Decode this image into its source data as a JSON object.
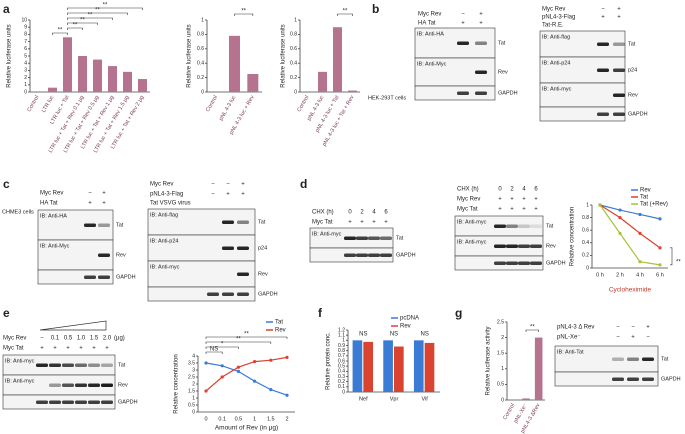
{
  "panel_labels": [
    "a",
    "b",
    "c",
    "d",
    "e",
    "f",
    "g"
  ],
  "chart_data": [
    {
      "type": "bar",
      "ylabel": "Relative luciferase units",
      "categories": [
        "Control",
        "LTR luc",
        "LTR luc + Tat",
        "LTR luc + Tat + Rev 0.1 μg",
        "LTR luc + Tat + Rev 0.5 μg",
        "LTR luc + Tat + Rev 1 μg",
        "LTR luc + Tat + Rev 1.5 μg",
        "LTR luc + Tat + Rev 2 μg"
      ],
      "values": [
        0,
        0.6,
        7.6,
        5.0,
        4.5,
        3.6,
        2.8,
        1.8
      ],
      "color": "#b5738f",
      "ylim": [
        0,
        10
      ],
      "yticks": [
        0,
        1,
        2,
        3,
        4,
        5,
        6,
        7,
        8,
        9,
        10
      ],
      "annotations": [
        "**",
        "**",
        "**",
        "**",
        "**",
        "**"
      ]
    },
    {
      "type": "bar",
      "ylabel": "Relative luciferase units",
      "categories": [
        "Control",
        "pNL 4-3 luc",
        "pNL 4-3 luc + Rev"
      ],
      "values": [
        0,
        0.78,
        0.25
      ],
      "color": "#b5738f",
      "ylim": [
        0,
        1
      ],
      "yticks": [
        0,
        0.2,
        0.4,
        0.6,
        0.8,
        1
      ],
      "annotations": [
        "**"
      ]
    },
    {
      "type": "bar",
      "ylabel": "Relative luciferase units",
      "categories": [
        "Control",
        "pNL 4-3 luc",
        "pNL 4-3 luc + Tat",
        "pNL 4-3 luc + Tat + Rev"
      ],
      "values": [
        0,
        0.28,
        0.9,
        0.02
      ],
      "color": "#b5738f",
      "ylim": [
        0,
        1
      ],
      "yticks": [
        0,
        0.2,
        0.4,
        0.6,
        0.8,
        1
      ],
      "annotations": [
        "**"
      ]
    },
    {
      "type": "line",
      "ylabel": "Relative concentration",
      "xlabel": "Cycloheximide",
      "xlabel_color": "#c0392b",
      "categories": [
        "0 h",
        "2 h",
        "4 h",
        "6 h"
      ],
      "series": [
        {
          "name": "Rev",
          "color": "#3a7bd5",
          "values": [
            1,
            0.92,
            0.85,
            0.78
          ]
        },
        {
          "name": "Tat",
          "color": "#d9432f",
          "values": [
            1,
            0.8,
            0.55,
            0.32
          ]
        },
        {
          "name": "Tat (+Rev)",
          "color": "#a8c23a",
          "values": [
            1,
            0.55,
            0.1,
            0.05
          ]
        }
      ],
      "ylim": [
        0,
        1
      ],
      "yticks": [
        0,
        0.2,
        0.4,
        0.6,
        0.8,
        1
      ],
      "legend": true,
      "annotations": [
        "**"
      ]
    },
    {
      "type": "line",
      "ylabel": "Relative concentration",
      "xlabel": "Amount of Rev (in μg)",
      "categories": [
        "0",
        "0.1",
        "0.5",
        "1",
        "1.5",
        "2"
      ],
      "series": [
        {
          "name": "Tat",
          "color": "#3a7bd5",
          "values": [
            3.5,
            3.3,
            2.9,
            2.2,
            1.6,
            1.2
          ]
        },
        {
          "name": "Rev",
          "color": "#d9432f",
          "values": [
            1.5,
            2.5,
            3.2,
            3.6,
            3.7,
            3.9
          ]
        }
      ],
      "ylim": [
        0,
        4
      ],
      "yticks": [
        0,
        0.5,
        1,
        1.5,
        2,
        2.5,
        3,
        3.5,
        4
      ],
      "legend": true,
      "annotations": [
        "NS",
        "*",
        "**",
        "**"
      ]
    },
    {
      "type": "bar",
      "ylabel": "Relative protein conc.",
      "categories": [
        "Nef",
        "Vpr",
        "Vif"
      ],
      "series": [
        {
          "name": "pcDNA",
          "color": "#3a7bd5",
          "values": [
            1.0,
            1.0,
            1.0
          ]
        },
        {
          "name": "Rev",
          "color": "#d9432f",
          "values": [
            0.97,
            0.88,
            0.95
          ]
        }
      ],
      "ylim": [
        0,
        1.2
      ],
      "yticks": [
        0,
        0.1,
        0.2,
        0.3,
        0.4,
        0.5,
        0.6,
        0.7,
        0.8,
        0.9,
        1,
        1.1,
        1.2
      ],
      "legend": true,
      "annotations": [
        "NS",
        "NS",
        "NS"
      ]
    },
    {
      "type": "bar",
      "ylabel": "Relative luciferase activity",
      "categories": [
        "Control",
        "pNL-Xe⁻",
        "pNL4-3 ΔRev"
      ],
      "values": [
        0,
        0.05,
        2.0
      ],
      "color": "#b5738f",
      "ylim": [
        0,
        2.5
      ],
      "yticks": [
        0,
        0.5,
        1,
        1.5,
        2,
        2.5
      ],
      "annotations": [
        "**"
      ]
    }
  ],
  "blots": [
    {
      "side": "HEK-293T cells",
      "conditions": [
        {
          "label": "Myc Rev",
          "signs": [
            "−",
            "+"
          ]
        },
        {
          "label": "HA Tat",
          "signs": [
            "+",
            "+"
          ]
        }
      ],
      "rows": [
        {
          "ib": "IB: Anti-HA",
          "right": "Tat"
        },
        {
          "ib": "IB: Anti-Myc",
          "right": "Rev"
        },
        {
          "right": "GAPDH"
        }
      ]
    },
    {
      "conditions": [
        {
          "label": "Myc Rev",
          "signs": [
            "−",
            "+"
          ]
        },
        {
          "label": "pNL4-3-Flag",
          "signs": [
            "+",
            "+"
          ]
        },
        {
          "label": "Tat-R.E."
        }
      ],
      "rows": [
        {
          "ib": "IB: Anti-flag",
          "right": "Tat"
        },
        {
          "ib": "IB: Anti-p24",
          "right": "p24"
        },
        {
          "ib": "IB: Anti-myc",
          "right": "Rev"
        },
        {
          "right": "GAPDH"
        }
      ]
    },
    {
      "side": "CHME3 cells",
      "conditions": [
        {
          "label": "Myc Rev",
          "signs": [
            "−",
            "+"
          ]
        },
        {
          "label": "HA Tat",
          "signs": [
            "+",
            "+"
          ]
        }
      ],
      "rows": [
        {
          "ib": "IB: Anti-HA",
          "right": "Tat"
        },
        {
          "ib": "IB: Anti-Myc",
          "right": "Rev"
        },
        {
          "right": "GAPDH"
        }
      ]
    },
    {
      "conditions": [
        {
          "label": "Myc Rev",
          "signs": [
            "−",
            "−",
            "+"
          ]
        },
        {
          "label": "pNL4-3-Flag",
          "signs": [
            "−",
            "+",
            "+"
          ]
        },
        {
          "label": "Tat VSVG virus"
        }
      ],
      "rows": [
        {
          "ib": "IB: Anti-flag",
          "right": "Tat"
        },
        {
          "ib": "IB: Anti-p24",
          "right": "p24"
        },
        {
          "ib": "IB: Anti-myc",
          "right": "Rev"
        },
        {
          "right": "GAPDH"
        }
      ]
    },
    {
      "conditions": [
        {
          "label": "CHX (h)",
          "signs": [
            "0",
            "2",
            "4",
            "6"
          ]
        },
        {
          "label": "Myc Tat",
          "signs": [
            "+",
            "+",
            "+",
            "+"
          ]
        }
      ],
      "rows": [
        {
          "ib": "IB: Anti-myc",
          "right": "Tat"
        },
        {
          "right": "GAPDH"
        }
      ]
    },
    {
      "conditions": [
        {
          "label": "CHX (h)",
          "signs": [
            "0",
            "2",
            "4",
            "6"
          ]
        },
        {
          "label": "Myc Rev",
          "signs": [
            "+",
            "+",
            "+",
            "+"
          ]
        },
        {
          "label": "Myc Tat",
          "signs": [
            "+",
            "+",
            "+",
            "+"
          ]
        }
      ],
      "rows": [
        {
          "ib": "IB: Anti-myc",
          "right": "Tat"
        },
        {
          "ib": "IB: Anti-myc",
          "right": "Rev"
        },
        {
          "right": "GAPDH"
        }
      ]
    },
    {
      "conditions": [
        {
          "label": "Myc Rev",
          "signs": [
            "−",
            "0.1",
            "0.5",
            "1.0",
            "1.5",
            "2.0"
          ],
          "unit": "(μg)"
        },
        {
          "label": "Myc Tat",
          "signs": [
            "+",
            "+",
            "+",
            "+",
            "+",
            "+"
          ]
        }
      ],
      "rows": [
        {
          "ib": "IB: Anti-myc",
          "right": "Tat"
        },
        {
          "ib": "IB: Anti-myc",
          "right": "Rev"
        },
        {
          "right": "GAPDH"
        }
      ]
    },
    {
      "conditions": [
        {
          "label": "pNL4-3 Δ Rev",
          "signs": [
            "−",
            "−",
            "+"
          ]
        },
        {
          "label": "pNL-Xe⁻",
          "signs": [
            "−",
            "+",
            "−"
          ]
        }
      ],
      "rows": [
        {
          "ib": "IB: Anti-Tat",
          "right": "Tat"
        },
        {
          "right": "GAPDH"
        }
      ]
    }
  ]
}
